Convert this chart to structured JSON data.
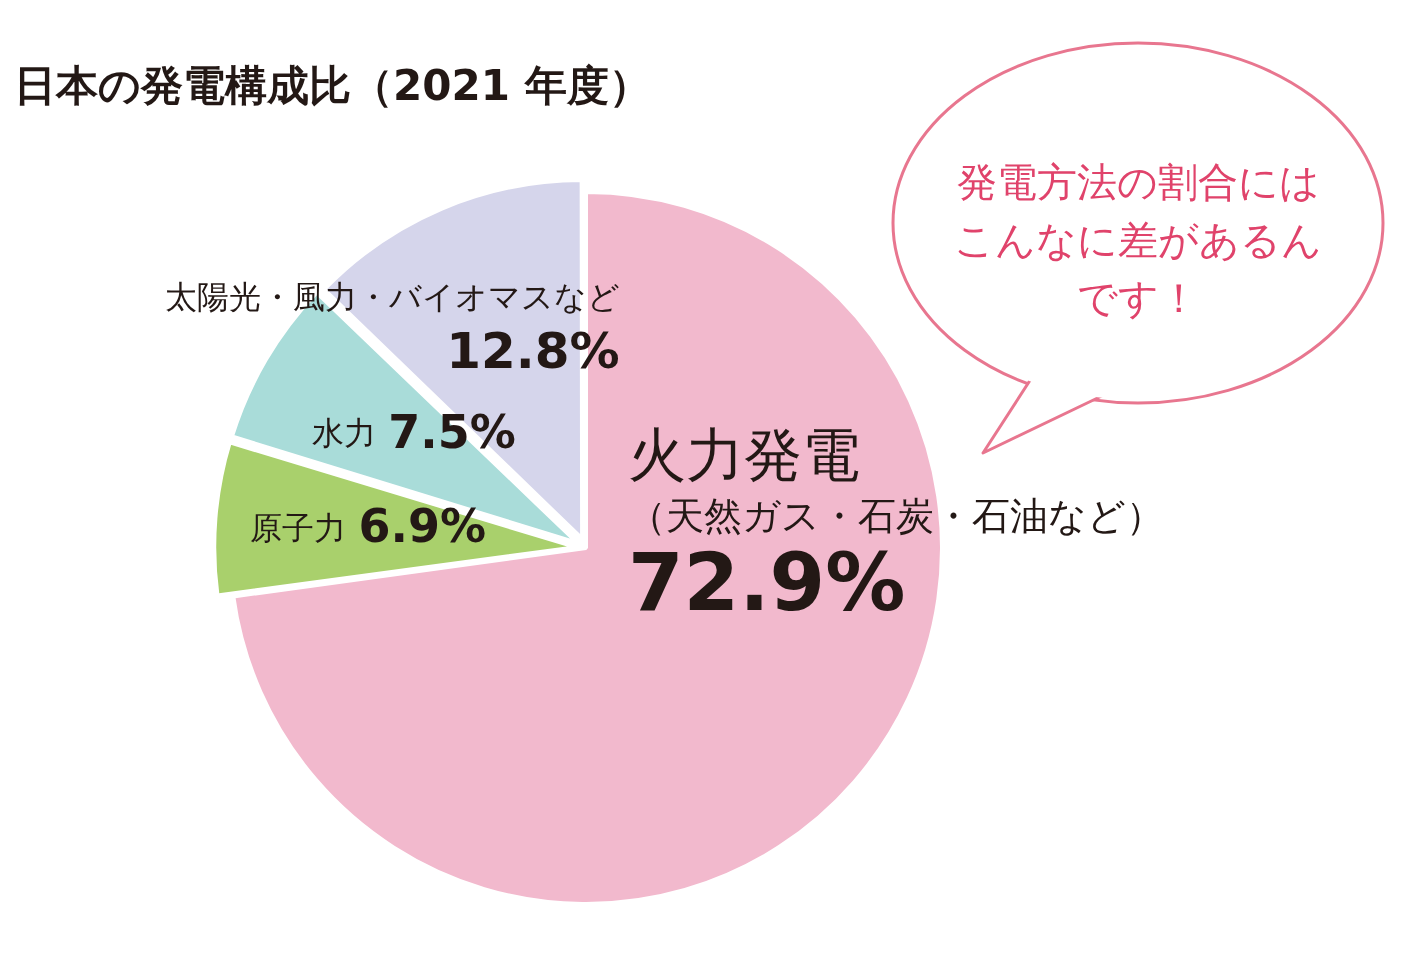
{
  "chart_data": {
    "type": "pie",
    "title": "日本の発電構成比（2021 年度）",
    "categories": [
      "火力発電（天然ガス・石炭・石油など）",
      "原子力",
      "水力",
      "太陽光・風力・バイオマスなど"
    ],
    "values": [
      72.9,
      6.9,
      7.5,
      12.8
    ],
    "value_labels": [
      "72.9%",
      "6.9%",
      "7.5%",
      "12.8%"
    ],
    "colors": [
      "#f2b9cd",
      "#a9d06c",
      "#a9dcd9",
      "#d5d5eb"
    ],
    "legend": false,
    "annotations": [
      "発電方法の割合にはこんなに差があるんです！"
    ]
  }
}
